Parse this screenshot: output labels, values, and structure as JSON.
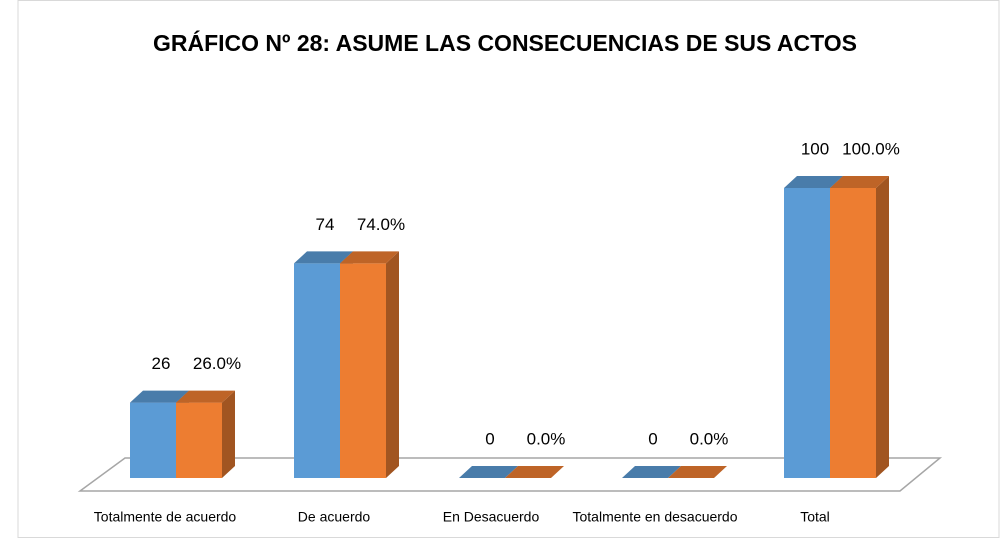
{
  "chart_data": {
    "type": "bar3d",
    "title": "GRÁFICO  Nº 28:  ASUME LAS CONSECUENCIAS DE SUS ACTOS",
    "categories": [
      "Totalmente de acuerdo",
      "De acuerdo",
      "En Desacuerdo",
      "Totalmente en desacuerdo",
      "Total"
    ],
    "series": [
      {
        "color": "#5b9bd5",
        "values": [
          26,
          74,
          0,
          0,
          100
        ]
      },
      {
        "color": "#ed7d31",
        "values": [
          26,
          74,
          0,
          0,
          100
        ],
        "value_labels": [
          "26.0%",
          "74.0%",
          "0.0%",
          "0.0%",
          "100.0%"
        ]
      }
    ]
  }
}
